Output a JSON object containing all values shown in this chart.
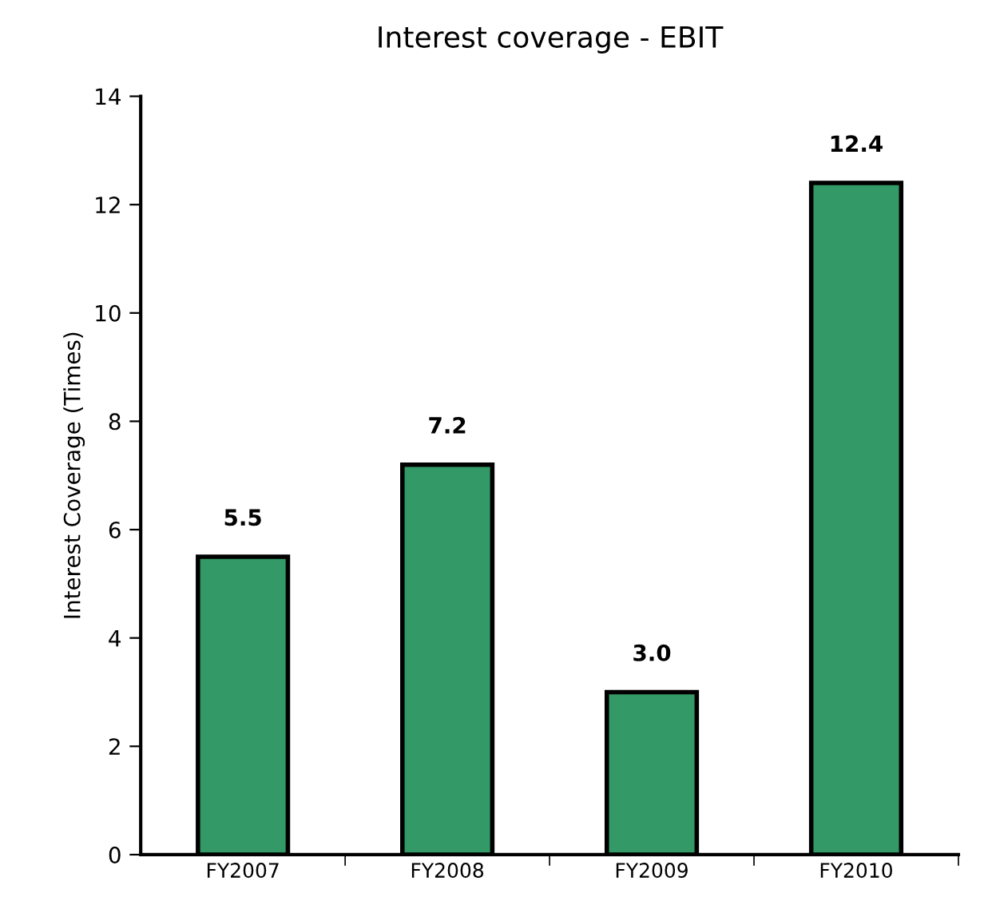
{
  "chart_data": {
    "type": "bar",
    "title": "Interest coverage - EBIT",
    "ylabel": "Interest Coverage (Times)",
    "categories": [
      "FY2007",
      "FY2008",
      "FY2009",
      "FY2010"
    ],
    "values": [
      5.5,
      7.2,
      3.0,
      12.4
    ],
    "value_labels": [
      "5.5",
      "7.2",
      "3.0",
      "12.4"
    ],
    "color": "#339966",
    "ylim": [
      0,
      14
    ],
    "yticks": [
      0,
      2,
      4,
      6,
      8,
      10,
      12,
      14
    ],
    "grid": false,
    "legend": false
  }
}
